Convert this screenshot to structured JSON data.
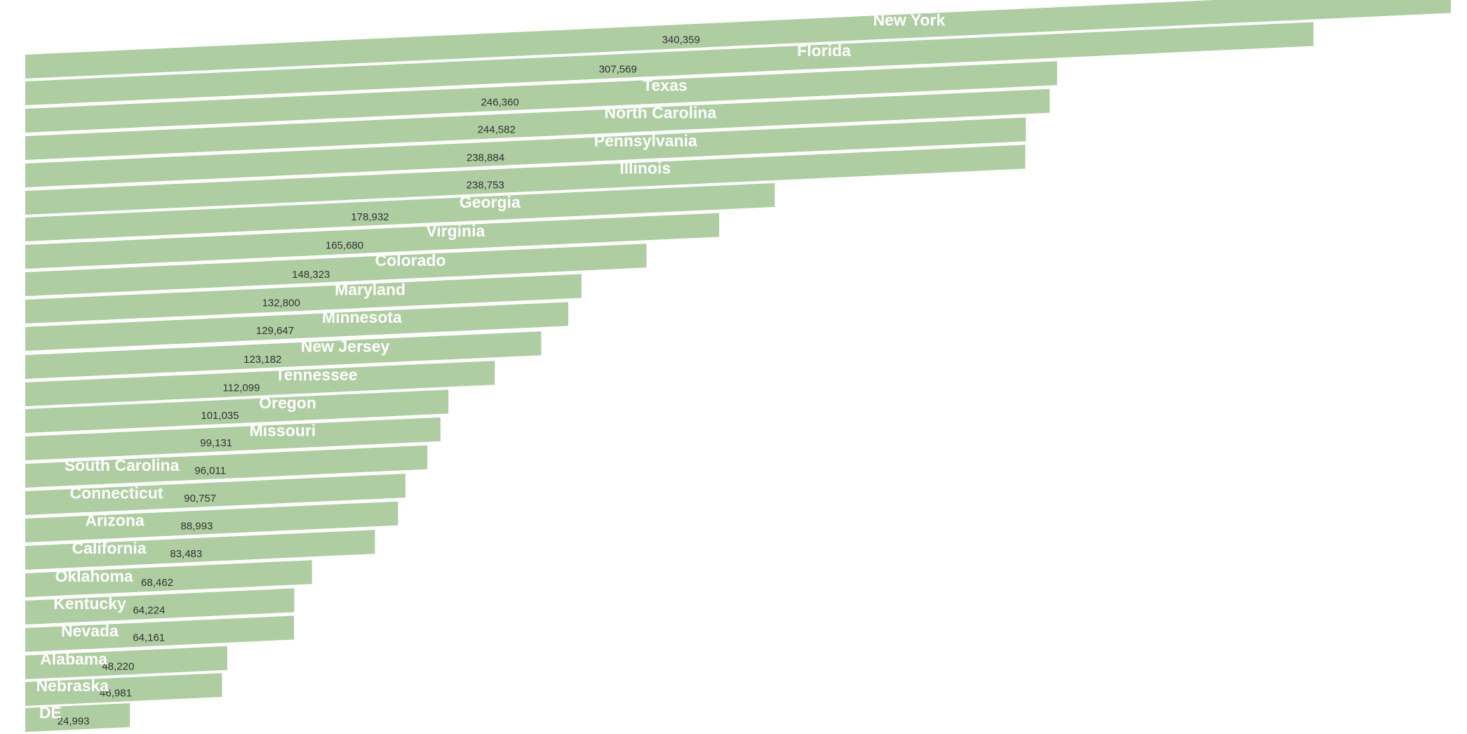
{
  "chart_data": {
    "type": "bar",
    "orientation": "horizontal",
    "title": "",
    "xlabel": "",
    "ylabel": "",
    "bar_color": "#aecda1",
    "label_color": "#ffffff",
    "value_color": "#333333",
    "grid": false,
    "legend": "none",
    "categories": [
      "New York",
      "Florida",
      "Texas",
      "North Carolina",
      "Pennsylvania",
      "Illinois",
      "Georgia",
      "Virginia",
      "Colorado",
      "Maryland",
      "Minnesota",
      "New Jersey",
      "Tennessee",
      "Oregon",
      "Missouri",
      "South Carolina",
      "Connecticut",
      "Arizona",
      "California",
      "Oklahoma",
      "Kentucky",
      "Nevada",
      "Alabama",
      "Nebraska",
      "DE"
    ],
    "values": [
      340359,
      307569,
      246360,
      244582,
      238884,
      238753,
      178932,
      165680,
      148323,
      132800,
      129647,
      123182,
      112099,
      101035,
      99131,
      96011,
      90757,
      88993,
      83483,
      68462,
      64224,
      64161,
      48220,
      46981,
      24993
    ],
    "value_labels": [
      "340,359",
      "307,569",
      "246,360",
      "244,582",
      "238,884",
      "238,753",
      "178,932",
      "165,680",
      "148,323",
      "132,800",
      "129,647",
      "123,182",
      "112,099",
      "101,035",
      "99,131",
      "96,011",
      "90,757",
      "88,993",
      "83,483",
      "68,462",
      "64,224",
      "64,161",
      "48,220",
      "46,981",
      "24,993"
    ]
  }
}
